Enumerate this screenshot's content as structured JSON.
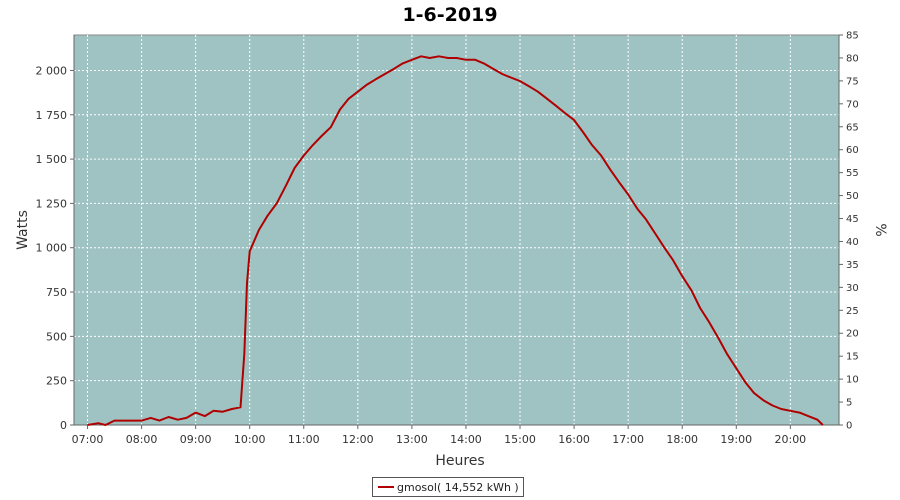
{
  "chart_data": {
    "type": "line",
    "title": "1-6-2019",
    "xlabel": "Heures",
    "ylabel": "Watts",
    "y2label": "%",
    "xlim": [
      6.75,
      20.9
    ],
    "ylim": [
      0,
      2200
    ],
    "y2lim": [
      0,
      85
    ],
    "x_ticks": [
      "07:00",
      "08:00",
      "09:00",
      "10:00",
      "11:00",
      "12:00",
      "13:00",
      "14:00",
      "15:00",
      "16:00",
      "17:00",
      "18:00",
      "19:00",
      "20:00"
    ],
    "y_ticks": [
      "0",
      "250",
      "500",
      "750",
      "1 000",
      "1 250",
      "1 500",
      "1 750",
      "2 000"
    ],
    "y2_ticks": [
      "0",
      "5",
      "10",
      "15",
      "20",
      "25",
      "30",
      "35",
      "40",
      "45",
      "50",
      "55",
      "60",
      "65",
      "70",
      "75",
      "80",
      "85"
    ],
    "grid": true,
    "legend_position": "bottom",
    "colors": {
      "plot_background": "#9fc3c3",
      "line": "#b00000",
      "grid": "#ffffff"
    },
    "series": [
      {
        "name": "gmosol( 14,552 kWh )",
        "x": [
          7.0,
          7.2,
          7.33,
          7.5,
          8.0,
          8.17,
          8.33,
          8.5,
          8.67,
          8.83,
          9.0,
          9.17,
          9.33,
          9.5,
          9.67,
          9.83,
          9.9,
          9.95,
          10.0,
          10.17,
          10.33,
          10.5,
          10.67,
          10.83,
          11.0,
          11.17,
          11.33,
          11.5,
          11.67,
          11.83,
          12.0,
          12.17,
          12.33,
          12.5,
          12.67,
          12.83,
          13.0,
          13.17,
          13.33,
          13.5,
          13.67,
          13.83,
          14.0,
          14.17,
          14.33,
          14.5,
          14.67,
          14.83,
          15.0,
          15.17,
          15.33,
          15.5,
          15.67,
          15.83,
          16.0,
          16.17,
          16.33,
          16.5,
          16.67,
          16.83,
          17.0,
          17.17,
          17.33,
          17.5,
          17.67,
          17.83,
          18.0,
          18.17,
          18.33,
          18.5,
          18.67,
          18.83,
          19.0,
          19.17,
          19.33,
          19.5,
          19.67,
          19.83,
          20.0,
          20.17,
          20.33,
          20.5,
          20.6
        ],
        "values": [
          0,
          10,
          0,
          25,
          25,
          40,
          25,
          45,
          30,
          40,
          70,
          50,
          80,
          75,
          90,
          100,
          400,
          800,
          980,
          1100,
          1180,
          1250,
          1350,
          1450,
          1520,
          1580,
          1630,
          1680,
          1780,
          1840,
          1880,
          1920,
          1950,
          1980,
          2010,
          2040,
          2060,
          2080,
          2070,
          2080,
          2070,
          2070,
          2060,
          2060,
          2040,
          2010,
          1980,
          1960,
          1940,
          1910,
          1880,
          1840,
          1800,
          1760,
          1720,
          1650,
          1580,
          1520,
          1440,
          1370,
          1300,
          1220,
          1160,
          1080,
          1000,
          930,
          840,
          760,
          660,
          580,
          490,
          400,
          320,
          240,
          180,
          140,
          110,
          90,
          80,
          70,
          50,
          30,
          0
        ]
      }
    ]
  },
  "legend": {
    "label": "gmosol( 14,552 kWh )"
  }
}
